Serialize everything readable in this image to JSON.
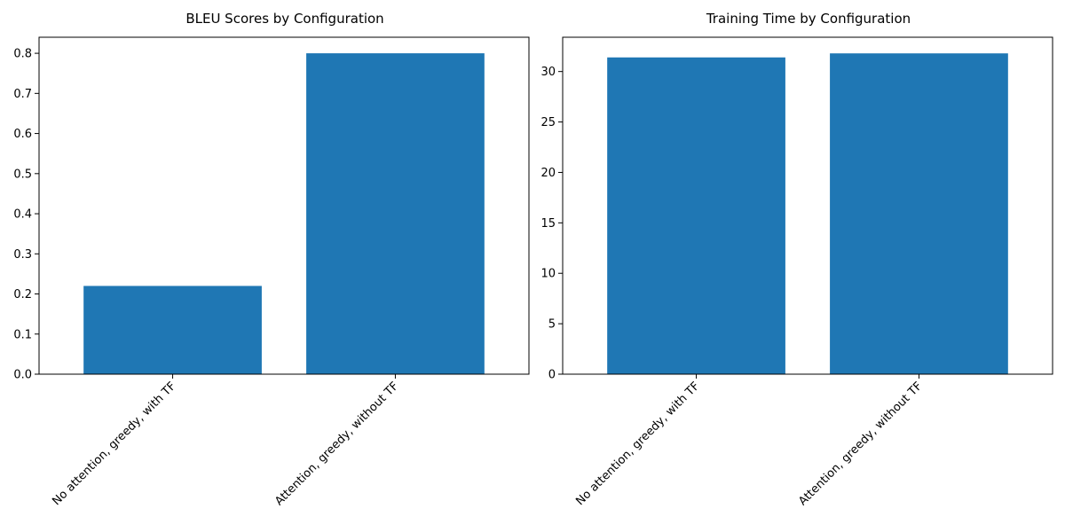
{
  "chart_data": [
    {
      "type": "bar",
      "title": "BLEU Scores by Configuration",
      "xlabel": "",
      "ylabel": "",
      "categories": [
        "No attention, greedy, with TF",
        "Attention, greedy, without TF"
      ],
      "values": [
        0.22,
        0.8
      ],
      "ylim": [
        0,
        0.84
      ],
      "yticks": [
        0.0,
        0.1,
        0.2,
        0.3,
        0.4,
        0.5,
        0.6,
        0.7,
        0.8
      ],
      "ytick_labels": [
        "0.0",
        "0.1",
        "0.2",
        "0.3",
        "0.4",
        "0.5",
        "0.6",
        "0.7",
        "0.8"
      ],
      "bar_color": "#1f77b4",
      "grid": false,
      "legend": "none"
    },
    {
      "type": "bar",
      "title": "Training Time by Configuration",
      "xlabel": "",
      "ylabel": "",
      "categories": [
        "No attention, greedy, with TF",
        "Attention, greedy, without TF"
      ],
      "values": [
        31.4,
        31.8
      ],
      "ylim": [
        0,
        33.4
      ],
      "yticks": [
        0,
        5,
        10,
        15,
        20,
        25,
        30
      ],
      "ytick_labels": [
        "0",
        "5",
        "10",
        "15",
        "20",
        "25",
        "30"
      ],
      "bar_color": "#1f77b4",
      "grid": false,
      "legend": "none"
    }
  ]
}
